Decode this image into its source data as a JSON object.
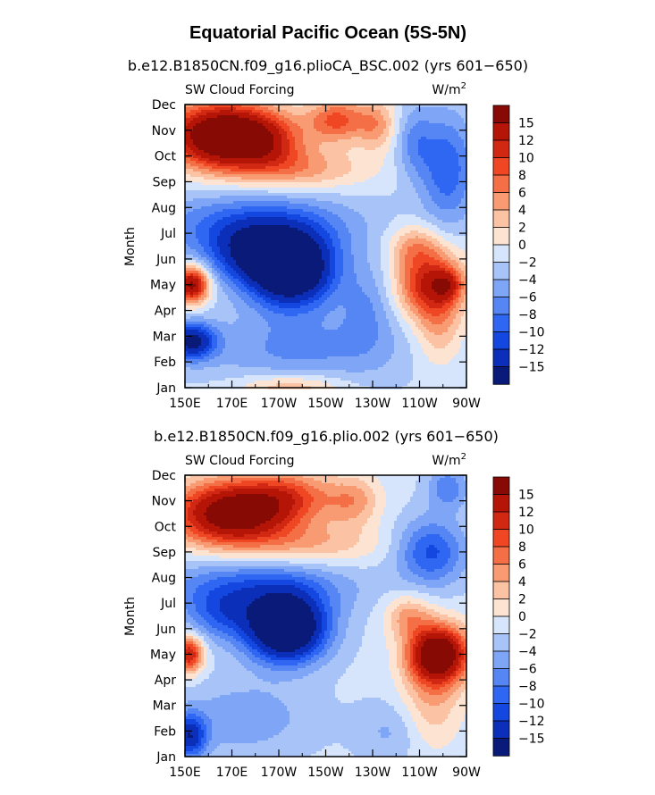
{
  "figure": {
    "title": "Equatorial Pacific Ocean (5S-5N)"
  },
  "colorbar": {
    "levels": [
      -15,
      -12,
      -10,
      -8,
      -6,
      -4,
      -2,
      0,
      2,
      4,
      6,
      8,
      10,
      12,
      15
    ],
    "colors": [
      "#0a1a78",
      "#0b2fb8",
      "#1446e0",
      "#2f66f2",
      "#5586f4",
      "#7ea5f6",
      "#a8c3f8",
      "#d6e5fb",
      "#fde4d2",
      "#fbc2a4",
      "#f89a72",
      "#f46f45",
      "#ef4623",
      "#d02812",
      "#b41506",
      "#870a05"
    ],
    "labels": [
      "15",
      "12",
      "10",
      "8",
      "6",
      "4",
      "2",
      "0",
      "−2",
      "−4",
      "−6",
      "−8",
      "−10",
      "−12",
      "−15"
    ]
  },
  "chart_data": [
    {
      "type": "heatmap",
      "subtitle": "b.e12.B1850CN.f09_g16.plioCA_BSC.002 (yrs 601−650)",
      "left_label": "SW Cloud Forcing",
      "units_label": "W/m",
      "units_exp": "2",
      "ylabel": "Month",
      "x_ticks": [
        "150E",
        "170E",
        "170W",
        "150W",
        "130W",
        "110W",
        "90W"
      ],
      "x_values": [
        150,
        170,
        190,
        210,
        230,
        250,
        270
      ],
      "xlim": [
        150,
        270
      ],
      "y_ticks": [
        "Jan",
        "Feb",
        "Mar",
        "Apr",
        "May",
        "Jun",
        "Jul",
        "Aug",
        "Sep",
        "Oct",
        "Nov",
        "Dec"
      ],
      "ylim": [
        1,
        12
      ],
      "blobs": [
        {
          "x": 165,
          "y": 10.8,
          "sx": 16,
          "sy": 0.9,
          "a": 22
        },
        {
          "x": 185,
          "y": 10.6,
          "sx": 12,
          "sy": 0.8,
          "a": 8
        },
        {
          "x": 215,
          "y": 11.4,
          "sx": 9,
          "sy": 0.6,
          "a": 10
        },
        {
          "x": 232,
          "y": 11.2,
          "sx": 6,
          "sy": 0.7,
          "a": 6
        },
        {
          "x": 200,
          "y": 9.5,
          "sx": 20,
          "sy": 0.6,
          "a": 6
        },
        {
          "x": 180,
          "y": 7.3,
          "sx": 30,
          "sy": 0.9,
          "a": -8
        },
        {
          "x": 195,
          "y": 5.6,
          "sx": 13,
          "sy": 1.0,
          "a": -22
        },
        {
          "x": 175,
          "y": 6.2,
          "sx": 12,
          "sy": 0.8,
          "a": -8
        },
        {
          "x": 153,
          "y": 5.0,
          "sx": 5,
          "sy": 0.5,
          "a": 18
        },
        {
          "x": 153,
          "y": 2.8,
          "sx": 7,
          "sy": 0.5,
          "a": -14
        },
        {
          "x": 200,
          "y": 2.5,
          "sx": 30,
          "sy": 1.0,
          "a": -5
        },
        {
          "x": 195,
          "y": 1.0,
          "sx": 16,
          "sy": 0.4,
          "a": 6
        },
        {
          "x": 255,
          "y": 5.0,
          "sx": 10,
          "sy": 0.9,
          "a": 14
        },
        {
          "x": 262,
          "y": 5.0,
          "sx": 4,
          "sy": 0.4,
          "a": 6
        },
        {
          "x": 248,
          "y": 6.5,
          "sx": 8,
          "sy": 0.6,
          "a": 6
        },
        {
          "x": 258,
          "y": 3.2,
          "sx": 7,
          "sy": 1.0,
          "a": 5
        },
        {
          "x": 262,
          "y": 9.5,
          "sx": 8,
          "sy": 1.5,
          "a": -8
        },
        {
          "x": 248,
          "y": 10.5,
          "sx": 6,
          "sy": 1.0,
          "a": -5
        },
        {
          "x": 228,
          "y": 4.2,
          "sx": 8,
          "sy": 1.2,
          "a": -4
        }
      ]
    },
    {
      "type": "heatmap",
      "subtitle": "b.e12.B1850CN.f09_g16.plio.002 (yrs 601−650)",
      "left_label": "SW Cloud Forcing",
      "units_label": "W/m",
      "units_exp": "2",
      "ylabel": "Month",
      "x_ticks": [
        "150E",
        "170E",
        "170W",
        "150W",
        "130W",
        "110W",
        "90W"
      ],
      "x_values": [
        150,
        170,
        190,
        210,
        230,
        250,
        270
      ],
      "xlim": [
        150,
        270
      ],
      "y_ticks": [
        "Jan",
        "Feb",
        "Mar",
        "Apr",
        "May",
        "Jun",
        "Jul",
        "Aug",
        "Sep",
        "Oct",
        "Nov",
        "Dec"
      ],
      "ylim": [
        1,
        12
      ],
      "blobs": [
        {
          "x": 170,
          "y": 10.5,
          "sx": 18,
          "sy": 0.9,
          "a": 20
        },
        {
          "x": 195,
          "y": 11.2,
          "sx": 14,
          "sy": 0.7,
          "a": 8
        },
        {
          "x": 222,
          "y": 11.0,
          "sx": 8,
          "sy": 0.7,
          "a": 6
        },
        {
          "x": 205,
          "y": 9.3,
          "sx": 20,
          "sy": 0.6,
          "a": 5
        },
        {
          "x": 180,
          "y": 7.6,
          "sx": 28,
          "sy": 0.8,
          "a": -8
        },
        {
          "x": 193,
          "y": 6.0,
          "sx": 12,
          "sy": 0.9,
          "a": -22
        },
        {
          "x": 165,
          "y": 6.5,
          "sx": 10,
          "sy": 0.7,
          "a": -6
        },
        {
          "x": 152,
          "y": 5.0,
          "sx": 4,
          "sy": 0.5,
          "a": 14
        },
        {
          "x": 152,
          "y": 1.8,
          "sx": 5,
          "sy": 0.6,
          "a": -12
        },
        {
          "x": 175,
          "y": 2.5,
          "sx": 20,
          "sy": 1.0,
          "a": -4
        },
        {
          "x": 258,
          "y": 5.0,
          "sx": 9,
          "sy": 0.8,
          "a": 22
        },
        {
          "x": 245,
          "y": 6.5,
          "sx": 7,
          "sy": 0.6,
          "a": 6
        },
        {
          "x": 255,
          "y": 3.0,
          "sx": 9,
          "sy": 1.2,
          "a": 5
        },
        {
          "x": 255,
          "y": 9.0,
          "sx": 10,
          "sy": 0.9,
          "a": -9
        },
        {
          "x": 262,
          "y": 11.5,
          "sx": 6,
          "sy": 0.6,
          "a": -6
        },
        {
          "x": 238,
          "y": 2.0,
          "sx": 10,
          "sy": 0.8,
          "a": -3
        }
      ]
    }
  ]
}
